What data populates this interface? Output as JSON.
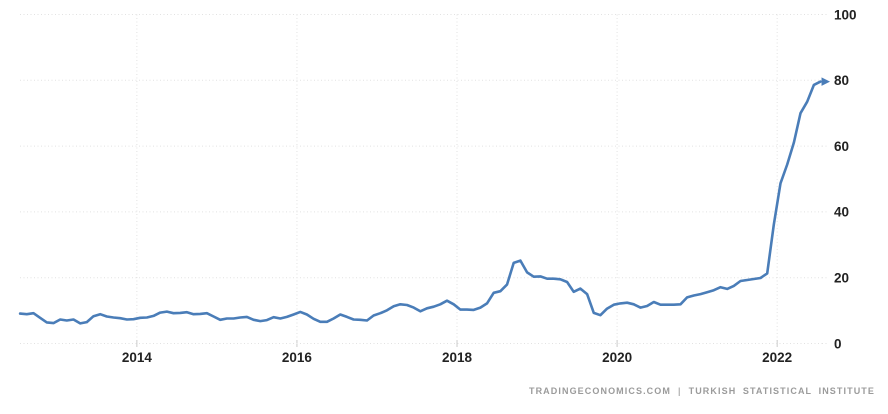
{
  "chart_data": {
    "type": "line",
    "title": "",
    "xlabel": "",
    "ylabel": "",
    "ylim": [
      0,
      100
    ],
    "y_ticks": [
      0,
      20,
      40,
      60,
      80,
      100
    ],
    "x_tick_labels": [
      "2014",
      "2016",
      "2018",
      "2020",
      "2022"
    ],
    "x_range": [
      2012.54,
      2022.56
    ],
    "grid": true,
    "legend": false,
    "line_color": "#4a7db8",
    "x": [
      "2012-07",
      "2012-08",
      "2012-09",
      "2012-10",
      "2012-11",
      "2012-12",
      "2013-01",
      "2013-02",
      "2013-03",
      "2013-04",
      "2013-05",
      "2013-06",
      "2013-07",
      "2013-08",
      "2013-09",
      "2013-10",
      "2013-11",
      "2013-12",
      "2014-01",
      "2014-02",
      "2014-03",
      "2014-04",
      "2014-05",
      "2014-06",
      "2014-07",
      "2014-08",
      "2014-09",
      "2014-10",
      "2014-11",
      "2014-12",
      "2015-01",
      "2015-02",
      "2015-03",
      "2015-04",
      "2015-05",
      "2015-06",
      "2015-07",
      "2015-08",
      "2015-09",
      "2015-10",
      "2015-11",
      "2015-12",
      "2016-01",
      "2016-02",
      "2016-03",
      "2016-04",
      "2016-05",
      "2016-06",
      "2016-07",
      "2016-08",
      "2016-09",
      "2016-10",
      "2016-11",
      "2016-12",
      "2017-01",
      "2017-02",
      "2017-03",
      "2017-04",
      "2017-05",
      "2017-06",
      "2017-07",
      "2017-08",
      "2017-09",
      "2017-10",
      "2017-11",
      "2017-12",
      "2018-01",
      "2018-02",
      "2018-03",
      "2018-04",
      "2018-05",
      "2018-06",
      "2018-07",
      "2018-08",
      "2018-09",
      "2018-10",
      "2018-11",
      "2018-12",
      "2019-01",
      "2019-02",
      "2019-03",
      "2019-04",
      "2019-05",
      "2019-06",
      "2019-07",
      "2019-08",
      "2019-09",
      "2019-10",
      "2019-11",
      "2019-12",
      "2020-01",
      "2020-02",
      "2020-03",
      "2020-04",
      "2020-05",
      "2020-06",
      "2020-07",
      "2020-08",
      "2020-09",
      "2020-10",
      "2020-11",
      "2020-12",
      "2021-01",
      "2021-02",
      "2021-03",
      "2021-04",
      "2021-05",
      "2021-06",
      "2021-07",
      "2021-08",
      "2021-09",
      "2021-10",
      "2021-11",
      "2021-12",
      "2022-01",
      "2022-02",
      "2022-03",
      "2022-04",
      "2022-05",
      "2022-06",
      "2022-07"
    ],
    "values": [
      9.1,
      8.9,
      9.2,
      7.8,
      6.4,
      6.2,
      7.3,
      7.0,
      7.3,
      6.1,
      6.5,
      8.3,
      8.9,
      8.2,
      7.9,
      7.7,
      7.3,
      7.4,
      7.8,
      7.9,
      8.4,
      9.4,
      9.7,
      9.2,
      9.3,
      9.5,
      8.9,
      9.0,
      9.2,
      8.2,
      7.2,
      7.6,
      7.6,
      7.9,
      8.1,
      7.2,
      6.8,
      7.1,
      8.0,
      7.6,
      8.1,
      8.8,
      9.6,
      8.8,
      7.5,
      6.6,
      6.6,
      7.6,
      8.8,
      8.1,
      7.3,
      7.2,
      7.0,
      8.5,
      9.2,
      10.1,
      11.3,
      11.9,
      11.7,
      10.9,
      9.8,
      10.7,
      11.2,
      11.9,
      13.0,
      11.9,
      10.3,
      10.3,
      10.2,
      10.9,
      12.2,
      15.4,
      15.9,
      17.9,
      24.5,
      25.2,
      21.6,
      20.3,
      20.4,
      19.7,
      19.7,
      19.5,
      18.7,
      15.7,
      16.7,
      15.0,
      9.3,
      8.6,
      10.6,
      11.8,
      12.2,
      12.4,
      11.9,
      10.9,
      11.4,
      12.6,
      11.8,
      11.8,
      11.8,
      11.9,
      14.0,
      14.6,
      15.0,
      15.6,
      16.2,
      17.1,
      16.6,
      17.5,
      19.0,
      19.3,
      19.6,
      19.9,
      21.3,
      36.1,
      48.7,
      54.4,
      61.1,
      70.0,
      73.5,
      78.6,
      79.6
    ]
  },
  "footer": {
    "attribution": "TRADINGECONOMICS.COM",
    "separator": "|",
    "source": "TURKISH  STATISTICAL  INSTITUTE"
  },
  "colors": {
    "line": "#4a7db8",
    "grid": "#e2e2e2",
    "tick": "#cccccc",
    "axis_text": "#222222",
    "attribution_text": "#9b9b9b",
    "background": "#ffffff"
  }
}
